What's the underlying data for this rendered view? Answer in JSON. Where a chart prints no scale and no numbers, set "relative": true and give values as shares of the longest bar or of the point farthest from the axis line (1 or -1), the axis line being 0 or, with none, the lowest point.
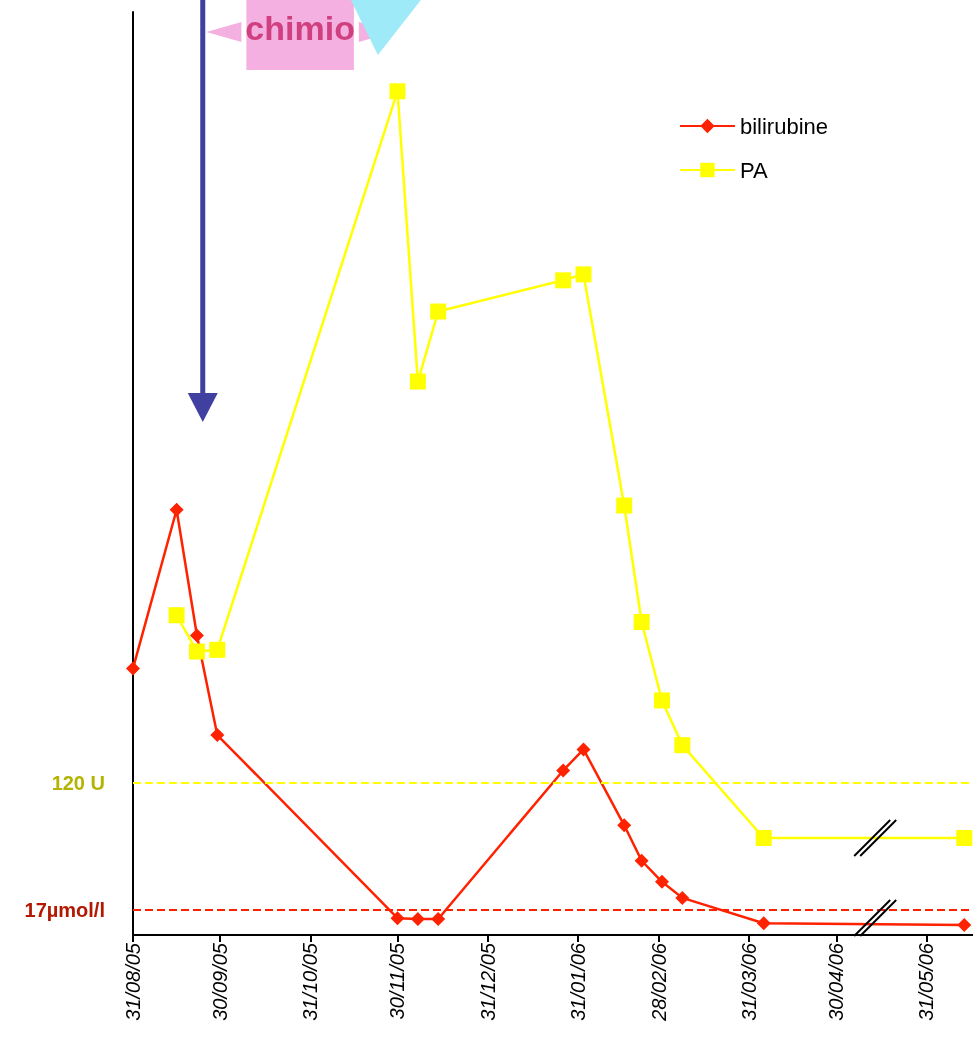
{
  "chart_data": {
    "type": "line",
    "relative": true,
    "legend": "top right",
    "grid": false,
    "xlim": [
      "2005-08-31",
      "2006-06-16"
    ],
    "xticks": [
      {
        "value": "2005-08-31",
        "label": "31/08/05"
      },
      {
        "value": "2005-09-30",
        "label": "30/09/05"
      },
      {
        "value": "2005-10-31",
        "label": "31/10/05"
      },
      {
        "value": "2005-11-30",
        "label": "30/11/05"
      },
      {
        "value": "2005-12-31",
        "label": "31/12/05"
      },
      {
        "value": "2006-01-31",
        "label": "31/01/06"
      },
      {
        "value": "2006-02-28",
        "label": "28/02/06"
      },
      {
        "value": "2006-03-31",
        "label": "31/03/06"
      },
      {
        "value": "2006-04-30",
        "label": "30/04/06"
      },
      {
        "value": "2006-05-31",
        "label": "31/05/06"
      }
    ],
    "series": [
      {
        "name": "bilirubine",
        "color": "#ff2200",
        "marker": "diamond",
        "x": [
          "2005-08-31",
          "2005-09-15",
          "2005-09-22",
          "2005-09-29",
          "2005-11-30",
          "2005-12-07",
          "2005-12-14",
          "2006-01-26",
          "2006-02-02",
          "2006-02-16",
          "2006-02-22",
          "2006-03-01",
          "2006-03-08",
          "2006-04-05",
          "2006-06-13"
        ],
        "values": [
          0.316,
          0.504,
          0.355,
          0.237,
          0.02,
          0.019,
          0.019,
          0.195,
          0.22,
          0.13,
          0.088,
          0.063,
          0.044,
          0.014,
          0.012
        ]
      },
      {
        "name": "PA",
        "color": "#ffff00",
        "marker": "square",
        "x": [
          "2005-09-15",
          "2005-09-22",
          "2005-09-29",
          "2005-11-30",
          "2005-12-07",
          "2005-12-14",
          "2006-01-26",
          "2006-02-02",
          "2006-02-16",
          "2006-02-22",
          "2006-03-01",
          "2006-03-08",
          "2006-04-05",
          "2006-06-13"
        ],
        "values": [
          0.379,
          0.336,
          0.338,
          1.0,
          0.656,
          0.739,
          0.776,
          0.783,
          0.509,
          0.371,
          0.278,
          0.225,
          0.115,
          0.115
        ]
      }
    ],
    "ref_lines": [
      {
        "axis": "y",
        "value": 0.182,
        "label": "120 U",
        "color": "#ffff00",
        "line_style": "dashed"
      },
      {
        "axis": "y",
        "value": 0.032,
        "label": "17µmol/l",
        "color": "#ff2200",
        "line_style": "dashed"
      }
    ],
    "annotations": [
      "chimio"
    ]
  }
}
